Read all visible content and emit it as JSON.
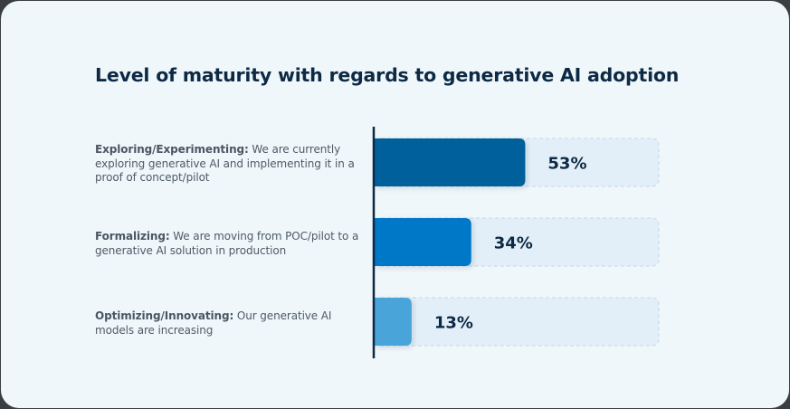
{
  "chart_data": {
    "type": "bar",
    "orientation": "horizontal",
    "title": "Level of maturity with regards to generative AI adoption",
    "xlim": [
      0,
      100
    ],
    "categories": [
      {
        "term": "Exploring/Experimenting:",
        "description": "We are currently exploring generative AI and implementing it in a proof of concept/pilot"
      },
      {
        "term": "Formalizing:",
        "description": "We are moving from POC/pilot to a generative AI solution in production"
      },
      {
        "term": "Optimizing/Innovating:",
        "description": "Our generative AI models are increasing"
      }
    ],
    "values": [
      53,
      34,
      13
    ],
    "value_labels": [
      "53%",
      "34%",
      "13%"
    ],
    "colors": [
      "#03609c",
      "#0478c8",
      "#4aa4d9"
    ],
    "track_color": "#e3eff8",
    "axis_color": "#0d2a45"
  }
}
